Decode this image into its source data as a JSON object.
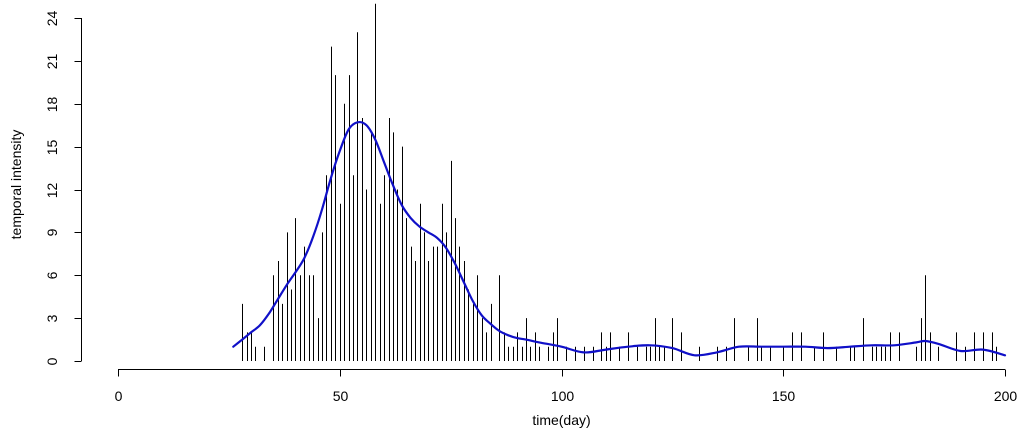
{
  "chart_data": {
    "type": "bar",
    "xlabel": "time(day)",
    "ylabel": "temporal intensity",
    "xlim": [
      0,
      200
    ],
    "ylim": [
      0,
      24
    ],
    "xticks": [
      0,
      50,
      100,
      150,
      200
    ],
    "yticks": [
      0,
      3,
      6,
      9,
      12,
      15,
      18,
      21,
      24
    ],
    "grid": false,
    "legend": "none",
    "colors": {
      "bars": "#000000",
      "smooth": "#1010c8"
    },
    "series": [
      {
        "type": "histogram-spikes",
        "x": [
          28,
          29,
          30,
          31,
          33,
          35,
          36,
          37,
          38,
          39,
          40,
          41,
          42,
          43,
          44,
          45,
          46,
          47,
          48,
          49,
          50,
          51,
          52,
          53,
          54,
          55,
          56,
          57,
          58,
          59,
          60,
          61,
          62,
          63,
          64,
          65,
          66,
          67,
          68,
          69,
          70,
          71,
          72,
          73,
          74,
          75,
          76,
          77,
          78,
          79,
          80,
          81,
          82,
          83,
          84,
          86,
          87,
          88,
          89,
          90,
          91,
          92,
          93,
          94,
          95,
          97,
          98,
          99,
          101,
          103,
          105,
          107,
          109,
          110,
          111,
          113,
          115,
          117,
          119,
          120,
          121,
          122,
          123,
          125,
          127,
          131,
          135,
          137,
          139,
          142,
          144,
          145,
          147,
          150,
          152,
          154,
          157,
          159,
          162,
          165,
          166,
          168,
          170,
          171,
          172,
          173,
          174,
          176,
          180,
          181,
          182,
          183,
          185,
          189,
          191,
          193,
          195,
          197,
          198
        ],
        "values": [
          4,
          2,
          2,
          1,
          1,
          6,
          7,
          4,
          9,
          5,
          10,
          6,
          8,
          6,
          6,
          3,
          9,
          13,
          22,
          20,
          11,
          18,
          20,
          13,
          23,
          17,
          12,
          16,
          25,
          11,
          13,
          17,
          16,
          12,
          15,
          10,
          8,
          7,
          11,
          9,
          7,
          8,
          8,
          11,
          9,
          14,
          10,
          8,
          7,
          5,
          4,
          6,
          3,
          2,
          4,
          6,
          2,
          1,
          1,
          2,
          1,
          3,
          1,
          2,
          1,
          1,
          2,
          3,
          1,
          1,
          1,
          1,
          2,
          1,
          2,
          1,
          2,
          1,
          1,
          1,
          3,
          1,
          1,
          3,
          2,
          1,
          1,
          1,
          3,
          1,
          3,
          1,
          1,
          1,
          2,
          2,
          1,
          2,
          1,
          1,
          1,
          3,
          1,
          1,
          1,
          1,
          2,
          2,
          1,
          3,
          6,
          2,
          1,
          2,
          1,
          2,
          2,
          2,
          1
        ]
      },
      {
        "type": "line",
        "x": [
          26,
          28,
          30,
          32,
          34,
          36,
          38,
          40,
          42,
          44,
          46,
          48,
          50,
          52,
          54,
          56,
          58,
          60,
          62,
          64,
          66,
          68,
          70,
          72,
          74,
          76,
          78,
          80,
          82,
          84,
          86,
          88,
          90,
          92,
          95,
          100,
          105,
          110,
          115,
          120,
          125,
          130,
          135,
          140,
          145,
          150,
          155,
          160,
          165,
          170,
          175,
          180,
          182,
          185,
          190,
          195,
          200
        ],
        "values": [
          1.0,
          1.5,
          2.0,
          2.5,
          3.3,
          4.3,
          5.3,
          6.2,
          7.2,
          8.7,
          10.6,
          12.8,
          14.7,
          16.2,
          16.7,
          16.5,
          15.5,
          13.9,
          12.3,
          10.9,
          10.0,
          9.4,
          9.0,
          8.6,
          7.9,
          6.8,
          5.5,
          4.2,
          3.2,
          2.6,
          2.1,
          1.8,
          1.6,
          1.5,
          1.3,
          1.0,
          0.6,
          0.8,
          1.0,
          1.1,
          0.9,
          0.4,
          0.6,
          1.0,
          1.0,
          1.0,
          1.0,
          0.9,
          1.0,
          1.1,
          1.1,
          1.3,
          1.4,
          1.2,
          0.7,
          0.8,
          0.4
        ]
      }
    ]
  }
}
